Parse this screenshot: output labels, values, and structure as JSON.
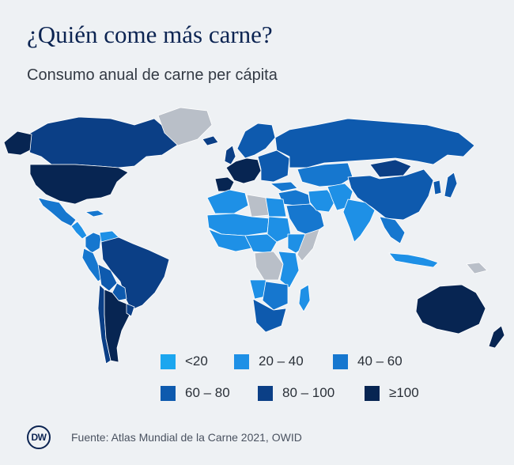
{
  "title": "¿Quién come más carne?",
  "subtitle": "Consumo anual de carne per cápita",
  "legend": [
    {
      "label": "<20",
      "color": "#1ba6ef"
    },
    {
      "label": "20 – 40",
      "color": "#1e90e6"
    },
    {
      "label": "40 – 60",
      "color": "#1677cf"
    },
    {
      "label": "60 – 80",
      "color": "#0e5aae"
    },
    {
      "label": "80 – 100",
      "color": "#0b3f86"
    },
    {
      "label": "≥100",
      "color": "#072552"
    }
  ],
  "no_data_color": "#b9bfc8",
  "regions": [
    {
      "name": "canada",
      "cls": 4
    },
    {
      "name": "greenland",
      "cls": -1
    },
    {
      "name": "usa",
      "cls": 5
    },
    {
      "name": "mexico",
      "cls": 2
    },
    {
      "name": "central-america",
      "cls": 1
    },
    {
      "name": "cuba",
      "cls": 2
    },
    {
      "name": "colombia",
      "cls": 2
    },
    {
      "name": "venezuela",
      "cls": 1
    },
    {
      "name": "peru",
      "cls": 2
    },
    {
      "name": "brazil",
      "cls": 4
    },
    {
      "name": "bolivia",
      "cls": 3
    },
    {
      "name": "paraguay",
      "cls": 3
    },
    {
      "name": "chile",
      "cls": 4
    },
    {
      "name": "argentina",
      "cls": 5
    },
    {
      "name": "uruguay",
      "cls": 4
    },
    {
      "name": "iceland",
      "cls": 4
    },
    {
      "name": "uk",
      "cls": 4
    },
    {
      "name": "scandinavia",
      "cls": 3
    },
    {
      "name": "western-europe",
      "cls": 5
    },
    {
      "name": "iberia",
      "cls": 5
    },
    {
      "name": "eastern-europe",
      "cls": 3
    },
    {
      "name": "turkey",
      "cls": 2
    },
    {
      "name": "russia",
      "cls": 3
    },
    {
      "name": "central-asia",
      "cls": 2
    },
    {
      "name": "mongolia",
      "cls": 4
    },
    {
      "name": "china",
      "cls": 3
    },
    {
      "name": "korea",
      "cls": 3
    },
    {
      "name": "japan",
      "cls": 3
    },
    {
      "name": "middle-east",
      "cls": 2
    },
    {
      "name": "saudi-arabia",
      "cls": 2
    },
    {
      "name": "iran",
      "cls": 1
    },
    {
      "name": "afghanistan-pakistan",
      "cls": 1
    },
    {
      "name": "india",
      "cls": 1
    },
    {
      "name": "southeast-asia",
      "cls": 2
    },
    {
      "name": "indonesia",
      "cls": 1
    },
    {
      "name": "papua-new-guinea",
      "cls": -1
    },
    {
      "name": "maghreb",
      "cls": 1
    },
    {
      "name": "libya",
      "cls": -1
    },
    {
      "name": "egypt",
      "cls": 1
    },
    {
      "name": "sahel",
      "cls": 1
    },
    {
      "name": "west-africa",
      "cls": 1
    },
    {
      "name": "sudan",
      "cls": 1
    },
    {
      "name": "horn-of-africa",
      "cls": 1
    },
    {
      "name": "somalia",
      "cls": -1
    },
    {
      "name": "central-africa",
      "cls": 1
    },
    {
      "name": "drc",
      "cls": -1
    },
    {
      "name": "east-africa",
      "cls": 1
    },
    {
      "name": "angola",
      "cls": 1
    },
    {
      "name": "southern-africa-inner",
      "cls": 2
    },
    {
      "name": "south-africa",
      "cls": 3
    },
    {
      "name": "madagascar",
      "cls": 1
    },
    {
      "name": "australia",
      "cls": 5
    },
    {
      "name": "new-zealand",
      "cls": 5
    }
  ],
  "source": "Fuente: Atlas Mundial de la Carne 2021, OWID",
  "logo": "DW"
}
